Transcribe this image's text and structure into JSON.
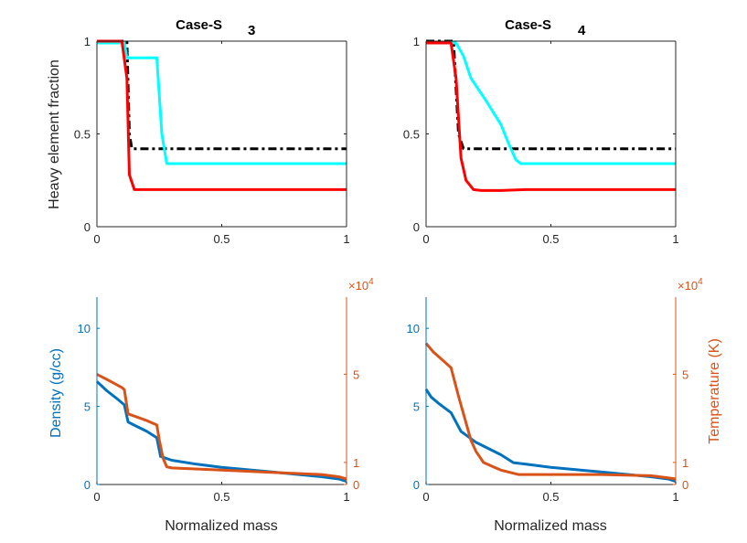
{
  "chart_data": [
    {
      "type": "line",
      "panel": "top-left",
      "title": "Case-S",
      "title_subscript": "3",
      "xlabel": "",
      "ylabel": "Heavy element fraction",
      "xlim": [
        0,
        1
      ],
      "ylim": [
        0,
        1
      ],
      "xticks": [
        "0",
        "0.5",
        "1"
      ],
      "yticks": [
        "0",
        "0.5",
        "1"
      ],
      "series": [
        {
          "name": "black-dashdot",
          "color": "#000000",
          "dash": "dashdot",
          "points": [
            [
              0,
              1
            ],
            [
              0.12,
              1
            ],
            [
              0.13,
              0.5
            ],
            [
              0.14,
              0.42
            ],
            [
              0.3,
              0.42
            ],
            [
              1,
              0.42
            ]
          ]
        },
        {
          "name": "cyan",
          "color": "#00FFFF",
          "dash": "solid",
          "points": [
            [
              0,
              0.99
            ],
            [
              0.11,
              0.99
            ],
            [
              0.12,
              0.91
            ],
            [
              0.24,
              0.91
            ],
            [
              0.26,
              0.5
            ],
            [
              0.28,
              0.34
            ],
            [
              1,
              0.34
            ]
          ]
        },
        {
          "name": "red",
          "color": "#FF0000",
          "dash": "solid",
          "points": [
            [
              0,
              1
            ],
            [
              0.1,
              1
            ],
            [
              0.12,
              0.8
            ],
            [
              0.13,
              0.28
            ],
            [
              0.15,
              0.2
            ],
            [
              0.3,
              0.2
            ],
            [
              1,
              0.2
            ]
          ]
        }
      ]
    },
    {
      "type": "line",
      "panel": "top-right",
      "title": "Case-S",
      "title_subscript": "4",
      "xlabel": "",
      "ylabel": "",
      "xlim": [
        0,
        1
      ],
      "ylim": [
        0,
        1
      ],
      "xticks": [
        "0",
        "0.5",
        "1"
      ],
      "yticks": [
        "0",
        "0.5",
        "1"
      ],
      "series": [
        {
          "name": "black-dashdot",
          "color": "#000000",
          "dash": "dashdot",
          "points": [
            [
              0,
              1
            ],
            [
              0.11,
              1
            ],
            [
              0.13,
              0.5
            ],
            [
              0.15,
              0.42
            ],
            [
              0.3,
              0.42
            ],
            [
              1,
              0.42
            ]
          ]
        },
        {
          "name": "cyan",
          "color": "#00FFFF",
          "dash": "solid",
          "points": [
            [
              0,
              0.99
            ],
            [
              0.12,
              0.99
            ],
            [
              0.15,
              0.92
            ],
            [
              0.18,
              0.8
            ],
            [
              0.24,
              0.68
            ],
            [
              0.3,
              0.55
            ],
            [
              0.33,
              0.45
            ],
            [
              0.36,
              0.36
            ],
            [
              0.38,
              0.34
            ],
            [
              1,
              0.34
            ]
          ]
        },
        {
          "name": "red",
          "color": "#FF0000",
          "dash": "solid",
          "points": [
            [
              0,
              0.99
            ],
            [
              0.1,
              0.99
            ],
            [
              0.12,
              0.8
            ],
            [
              0.14,
              0.37
            ],
            [
              0.16,
              0.25
            ],
            [
              0.19,
              0.2
            ],
            [
              0.22,
              0.195
            ],
            [
              0.3,
              0.195
            ],
            [
              0.4,
              0.2
            ],
            [
              1,
              0.2
            ]
          ]
        }
      ]
    },
    {
      "type": "line",
      "panel": "bottom-left",
      "title": "",
      "xlabel": "Normalized mass",
      "ylabel_left": "Density (g/cc)",
      "ylabel_right": "",
      "right_exponent_prefix": "×10",
      "right_exponent": "4",
      "xlim": [
        0,
        1
      ],
      "ylim_left": [
        0,
        12
      ],
      "ylim_right": [
        0,
        8.5
      ],
      "xticks": [
        "0",
        "0.5",
        "1"
      ],
      "yticks_left": [
        "0",
        "5",
        "10"
      ],
      "yticks_right": [
        "0",
        "1",
        "5"
      ],
      "left_color": "#0072BD",
      "right_color": "#D95319",
      "series": [
        {
          "name": "density",
          "axis": "left",
          "color": "#0072BD",
          "points": [
            [
              0,
              6.6
            ],
            [
              0.04,
              6.0
            ],
            [
              0.08,
              5.5
            ],
            [
              0.11,
              5.1
            ],
            [
              0.125,
              4.0
            ],
            [
              0.15,
              3.8
            ],
            [
              0.2,
              3.4
            ],
            [
              0.24,
              3.0
            ],
            [
              0.255,
              1.8
            ],
            [
              0.3,
              1.55
            ],
            [
              0.4,
              1.3
            ],
            [
              0.5,
              1.1
            ],
            [
              0.6,
              0.95
            ],
            [
              0.7,
              0.8
            ],
            [
              0.8,
              0.65
            ],
            [
              0.9,
              0.5
            ],
            [
              0.97,
              0.35
            ],
            [
              1,
              0.2
            ]
          ]
        },
        {
          "name": "temperature",
          "axis": "right",
          "color": "#D95319",
          "points": [
            [
              0,
              5.0
            ],
            [
              0.05,
              4.7
            ],
            [
              0.1,
              4.4
            ],
            [
              0.11,
              4.3
            ],
            [
              0.125,
              3.2
            ],
            [
              0.15,
              3.1
            ],
            [
              0.2,
              2.9
            ],
            [
              0.24,
              2.7
            ],
            [
              0.25,
              2.0
            ],
            [
              0.265,
              1.2
            ],
            [
              0.28,
              0.8
            ],
            [
              0.3,
              0.75
            ],
            [
              0.5,
              0.65
            ],
            [
              0.7,
              0.55
            ],
            [
              0.9,
              0.45
            ],
            [
              0.97,
              0.35
            ],
            [
              1,
              0.25
            ]
          ]
        }
      ]
    },
    {
      "type": "line",
      "panel": "bottom-right",
      "title": "",
      "xlabel": "Normalized mass",
      "ylabel_left": "",
      "ylabel_right": "Temperature (K)",
      "right_exponent_prefix": "×10",
      "right_exponent": "4",
      "xlim": [
        0,
        1
      ],
      "ylim_left": [
        0,
        12
      ],
      "ylim_right": [
        0,
        8.5
      ],
      "xticks": [
        "0",
        "0.5",
        "1"
      ],
      "yticks_left": [
        "0",
        "5",
        "10"
      ],
      "yticks_right": [
        "0",
        "1",
        "5"
      ],
      "left_color": "#0072BD",
      "right_color": "#D95319",
      "series": [
        {
          "name": "density",
          "axis": "left",
          "color": "#0072BD",
          "points": [
            [
              0,
              6.1
            ],
            [
              0.02,
              5.6
            ],
            [
              0.05,
              5.2
            ],
            [
              0.1,
              4.6
            ],
            [
              0.14,
              3.4
            ],
            [
              0.2,
              2.7
            ],
            [
              0.3,
              1.9
            ],
            [
              0.35,
              1.4
            ],
            [
              0.4,
              1.3
            ],
            [
              0.5,
              1.1
            ],
            [
              0.6,
              0.95
            ],
            [
              0.7,
              0.8
            ],
            [
              0.8,
              0.65
            ],
            [
              0.9,
              0.5
            ],
            [
              0.97,
              0.35
            ],
            [
              1,
              0.2
            ]
          ]
        },
        {
          "name": "temperature",
          "axis": "right",
          "color": "#D95319",
          "points": [
            [
              0,
              6.4
            ],
            [
              0.03,
              6.0
            ],
            [
              0.07,
              5.6
            ],
            [
              0.1,
              5.3
            ],
            [
              0.13,
              4.0
            ],
            [
              0.16,
              2.8
            ],
            [
              0.18,
              2.0
            ],
            [
              0.2,
              1.5
            ],
            [
              0.23,
              1.0
            ],
            [
              0.27,
              0.8
            ],
            [
              0.3,
              0.65
            ],
            [
              0.37,
              0.45
            ],
            [
              0.5,
              0.45
            ],
            [
              0.7,
              0.45
            ],
            [
              0.9,
              0.4
            ],
            [
              0.97,
              0.3
            ],
            [
              1,
              0.25
            ]
          ]
        }
      ]
    }
  ]
}
